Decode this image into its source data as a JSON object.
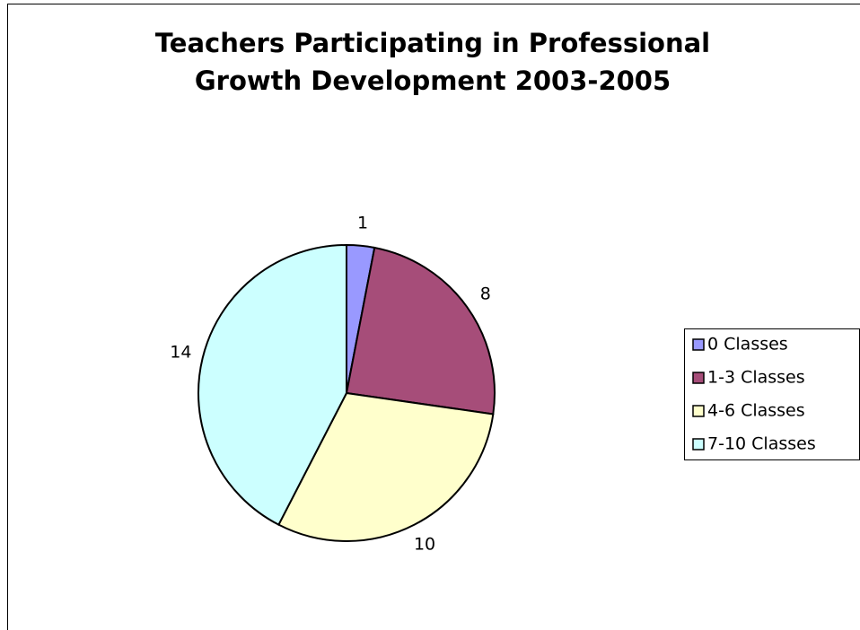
{
  "chart_data": {
    "type": "pie",
    "title": [
      "Teachers Participating in Professional",
      "Growth Development 2003-2005"
    ],
    "categories": [
      "0 Classes",
      "1-3 Classes",
      "4-6 Classes",
      "7-10 Classes"
    ],
    "values": [
      1,
      8,
      10,
      14
    ],
    "colors": [
      "#9999ff",
      "#a64d79",
      "#ffffcc",
      "#ccffff"
    ],
    "legend": "right"
  }
}
